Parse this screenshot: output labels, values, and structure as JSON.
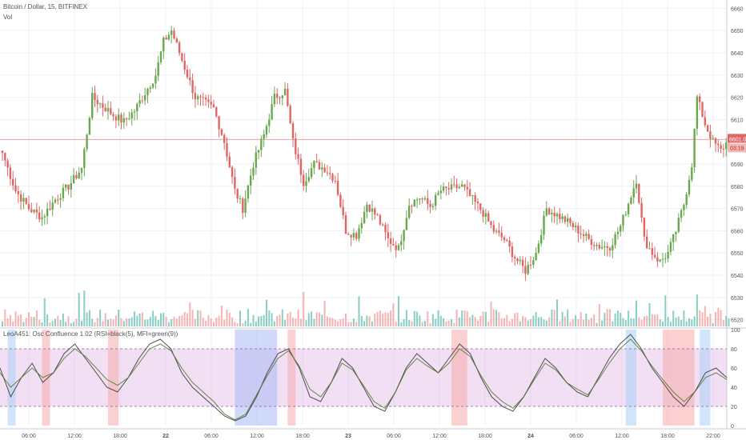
{
  "header": {
    "symbol": "Bitcoin / Dollar, 15, BITFINEX",
    "volume_label": "Vol",
    "indicator": "LeoA451: Osc Confluence 1.02 (RSI=black(5), MFI=green(9))"
  },
  "colors": {
    "up": "#6aa84f",
    "down": "#e06666",
    "vol_up": "#76c6b8",
    "vol_down": "#f4a6a6",
    "price_line": "#e06666",
    "rsi": "#333333",
    "mfi": "#4a7a2a"
  },
  "chart_data": [
    {
      "type": "candlestick",
      "title": "Bitcoin / Dollar, 15, BITFINEX",
      "x_ticks": [
        "06:00",
        "12:00",
        "18:00",
        "22",
        "06:00",
        "12:00",
        "18:00",
        "23",
        "06:00",
        "12:00",
        "18:00",
        "24",
        "06:00",
        "12:00",
        "18:00",
        "22:00"
      ],
      "y_ticks": [
        6520,
        6530,
        6540,
        6550,
        6560,
        6570,
        6580,
        6590,
        6610,
        6620,
        6630,
        6640,
        6650,
        6660
      ],
      "ylim": [
        6517,
        6663
      ],
      "last_price": "6601.0",
      "countdown": "03:19",
      "close_anchors": [
        [
          0,
          6595
        ],
        [
          5,
          6578
        ],
        [
          10,
          6570
        ],
        [
          15,
          6566
        ],
        [
          20,
          6574
        ],
        [
          25,
          6580
        ],
        [
          30,
          6588
        ],
        [
          34,
          6620
        ],
        [
          38,
          6616
        ],
        [
          42,
          6612
        ],
        [
          46,
          6609
        ],
        [
          50,
          6614
        ],
        [
          54,
          6622
        ],
        [
          58,
          6630
        ],
        [
          61,
          6645
        ],
        [
          64,
          6650
        ],
        [
          67,
          6640
        ],
        [
          70,
          6630
        ],
        [
          73,
          6620
        ],
        [
          76,
          6618
        ],
        [
          80,
          6615
        ],
        [
          84,
          6600
        ],
        [
          88,
          6578
        ],
        [
          91,
          6570
        ],
        [
          95,
          6590
        ],
        [
          99,
          6603
        ],
        [
          103,
          6620
        ],
        [
          107,
          6623
        ],
        [
          110,
          6600
        ],
        [
          114,
          6582
        ],
        [
          118,
          6590
        ],
        [
          122,
          6588
        ],
        [
          126,
          6583
        ],
        [
          130,
          6560
        ],
        [
          134,
          6558
        ],
        [
          138,
          6572
        ],
        [
          142,
          6566
        ],
        [
          146,
          6556
        ],
        [
          150,
          6552
        ],
        [
          154,
          6572
        ],
        [
          158,
          6575
        ],
        [
          162,
          6571
        ],
        [
          166,
          6578
        ],
        [
          170,
          6579
        ],
        [
          174,
          6580
        ],
        [
          178,
          6574
        ],
        [
          182,
          6568
        ],
        [
          186,
          6560
        ],
        [
          190,
          6556
        ],
        [
          194,
          6548
        ],
        [
          198,
          6542
        ],
        [
          202,
          6550
        ],
        [
          206,
          6570
        ],
        [
          210,
          6567
        ],
        [
          214,
          6564
        ],
        [
          218,
          6560
        ],
        [
          222,
          6556
        ],
        [
          226,
          6553
        ],
        [
          230,
          6553
        ],
        [
          234,
          6562
        ],
        [
          238,
          6576
        ],
        [
          240,
          6583
        ],
        [
          243,
          6556
        ],
        [
          246,
          6550
        ],
        [
          249,
          6546
        ],
        [
          252,
          6550
        ],
        [
          255,
          6560
        ],
        [
          258,
          6572
        ],
        [
          261,
          6590
        ],
        [
          263,
          6620
        ],
        [
          266,
          6608
        ],
        [
          269,
          6600
        ],
        [
          272,
          6596
        ],
        [
          275,
          6601
        ]
      ]
    },
    {
      "type": "line",
      "title": "LeoA451: Osc Confluence 1.02 (RSI=black(5), MFI=green(9))",
      "y_ticks": [
        0,
        20,
        40,
        60,
        80,
        100
      ],
      "ylim": [
        0,
        100
      ],
      "bands": [
        20,
        80
      ],
      "series": [
        {
          "name": "RSI",
          "color": "black",
          "values": [
            60,
            30,
            50,
            65,
            45,
            55,
            75,
            85,
            70,
            55,
            40,
            35,
            50,
            70,
            85,
            90,
            80,
            55,
            40,
            30,
            20,
            10,
            5,
            10,
            30,
            55,
            75,
            80,
            60,
            30,
            25,
            45,
            70,
            60,
            40,
            20,
            15,
            35,
            60,
            75,
            65,
            55,
            70,
            85,
            75,
            50,
            30,
            20,
            15,
            30,
            50,
            70,
            60,
            45,
            35,
            30,
            50,
            70,
            85,
            95,
            80,
            60,
            45,
            30,
            20,
            35,
            55,
            60,
            50
          ]
        },
        {
          "name": "MFI",
          "color": "green",
          "values": [
            55,
            40,
            50,
            60,
            50,
            55,
            70,
            80,
            72,
            60,
            48,
            42,
            50,
            65,
            80,
            85,
            78,
            60,
            45,
            35,
            25,
            12,
            6,
            12,
            32,
            52,
            70,
            78,
            62,
            38,
            30,
            45,
            65,
            58,
            42,
            25,
            18,
            35,
            58,
            70,
            62,
            55,
            65,
            80,
            72,
            52,
            35,
            25,
            18,
            30,
            48,
            65,
            58,
            45,
            38,
            32,
            48,
            65,
            80,
            90,
            78,
            62,
            48,
            35,
            25,
            35,
            50,
            55,
            48
          ]
        }
      ]
    }
  ]
}
